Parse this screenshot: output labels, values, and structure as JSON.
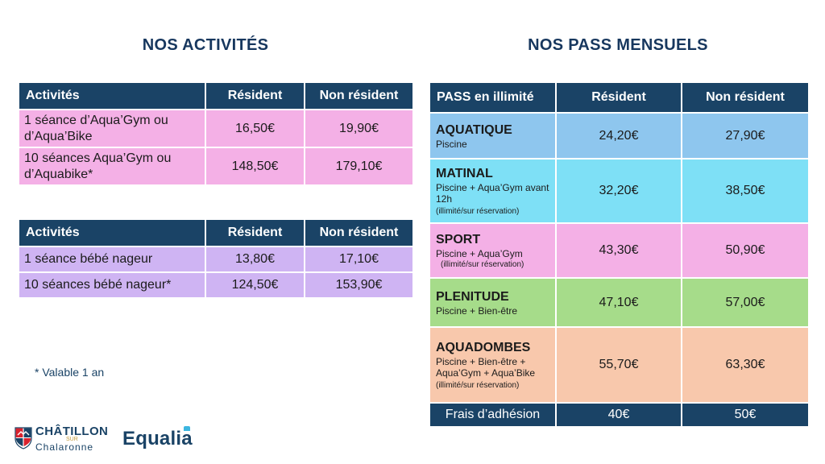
{
  "activites": {
    "title": "NOS ACTIVITÉS",
    "aqua_table": {
      "headers": [
        "Activités",
        "Résident",
        "Non résident"
      ],
      "rows": [
        [
          "1 séance d’Aqua’Gym ou d’Aqua’Bike",
          "16,50€",
          "19,90€"
        ],
        [
          "10 séances Aqua’Gym ou d’Aquabike*",
          "148,50€",
          "179,10€"
        ]
      ]
    },
    "bebe_table": {
      "headers": [
        "Activités",
        "Résident",
        "Non résident"
      ],
      "rows": [
        [
          "1 séance bébé nageur",
          "13,80€",
          "17,10€"
        ],
        [
          "10 séances bébé nageur*",
          "124,50€",
          "153,90€"
        ]
      ]
    },
    "footnote": "* Valable 1 an"
  },
  "pass": {
    "title": "NOS PASS MENSUELS",
    "headers": [
      "PASS en illimité",
      "Résident",
      "Non résident"
    ],
    "rows": [
      {
        "name": "AQUATIQUE",
        "desc": "Piscine",
        "note": "",
        "resident": "24,20€",
        "non_resident": "27,90€"
      },
      {
        "name": "MATINAL",
        "desc": "Piscine + Aqua’Gym avant 12h",
        "note": "(illimité/sur réservation)",
        "resident": "32,20€",
        "non_resident": "38,50€"
      },
      {
        "name": "SPORT",
        "desc": "Piscine + Aqua’Gym",
        "note": "(illimité/sur réservation)",
        "resident": "43,30€",
        "non_resident": "50,90€"
      },
      {
        "name": "PLENITUDE",
        "desc": "Piscine + Bien-être",
        "note": "",
        "resident": "47,10€",
        "non_resident": "57,00€"
      },
      {
        "name": "AQUADOMBES",
        "desc": "Piscine + Bien-être + Aqua’Gym + Aqua’Bike",
        "note": "(illimité/sur réservation)",
        "resident": "55,70€",
        "non_resident": "63,30€"
      }
    ],
    "frais": {
      "label": "Frais d’adhésion",
      "resident": "40€",
      "non_resident": "50€"
    }
  },
  "logos": {
    "chatillon": {
      "name": "CHÂTILLON",
      "sur": "SUR",
      "sub": "Chalaronne"
    },
    "equalia": {
      "text": "Equalia"
    }
  },
  "colors": {
    "navy": "#1a4366",
    "pink": "#f4b0e6",
    "lavender": "#cfb4f3",
    "blue": "#8ec6ee",
    "cyan": "#7ee0f6",
    "green": "#a6dc8a",
    "peach": "#f8c8ac"
  }
}
